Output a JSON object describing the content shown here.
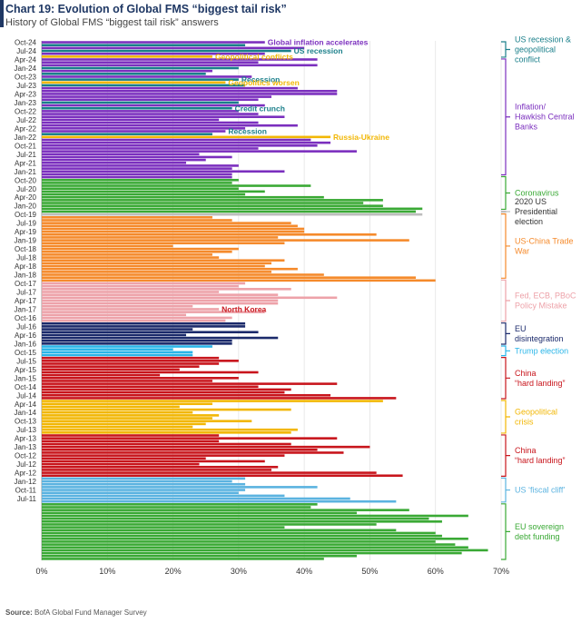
{
  "header": {
    "title": "Chart 19: Evolution of Global FMS “biggest tail risk”",
    "subtitle": "History of Global FMS “biggest tail risk” answers",
    "source_label": "Source:",
    "source_text": " BofA Global Fund Manager Survey"
  },
  "chart_data": {
    "type": "bar",
    "orientation": "horizontal",
    "title": "Chart 19: Evolution of Global FMS “biggest tail risk”",
    "xlabel": "",
    "ylabel": "",
    "xlim": [
      0,
      70
    ],
    "x_ticks": [
      0,
      10,
      20,
      30,
      40,
      50,
      60,
      70
    ],
    "x_tick_labels": [
      "0%",
      "10%",
      "20%",
      "30%",
      "40%",
      "50%",
      "60%",
      "70%"
    ],
    "y_tick_labels": [
      "Oct-24",
      "Jul-24",
      "Apr-24",
      "Jan-24",
      "Oct-23",
      "Jul-23",
      "Apr-23",
      "Jan-23",
      "Oct-22",
      "Jul-22",
      "Apr-22",
      "Jan-22",
      "Oct-21",
      "Jul-21",
      "Apr-21",
      "Jan-21",
      "Oct-20",
      "Jul-20",
      "Apr-20",
      "Jan-20",
      "Oct-19",
      "Jul-19",
      "Apr-19",
      "Jan-19",
      "Oct-18",
      "Jul-18",
      "Apr-18",
      "Jan-18",
      "Oct-17",
      "Jul-17",
      "Apr-17",
      "Jan-17",
      "Oct-16",
      "Jul-16",
      "Apr-16",
      "Jan-16",
      "Oct-15",
      "Jul-15",
      "Apr-15",
      "Jan-15",
      "Oct-14",
      "Jul-14",
      "Apr-14",
      "Jan-14",
      "Oct-13",
      "Jul-13",
      "Apr-13",
      "Jan-13",
      "Oct-12",
      "Jul-12",
      "Apr-12",
      "Jan-12",
      "Oct-11",
      "Jul-11"
    ],
    "colors": {
      "us_recession": "#1a7f8a",
      "geopolitical": "#f2b705",
      "inflation": "#7b2fbe",
      "coronavirus": "#3aa935",
      "us_election_2020": "#bdbdbd",
      "trade_war": "#f58a2b",
      "policy_mistake": "#eda2a9",
      "eu_disintegration": "#1b2a6b",
      "trump_election": "#29b5e8",
      "china_hard_landing": "#c8151c",
      "fiscal_cliff": "#5bb3e0",
      "eu_sovereign": "#3aa935"
    },
    "bars": [
      {
        "v": 34,
        "c": "inflation"
      },
      {
        "v": 31,
        "c": "us_recession"
      },
      {
        "v": 40,
        "c": "inflation"
      },
      {
        "v": 38,
        "c": "us_recession"
      },
      {
        "v": 34,
        "c": "inflation"
      },
      {
        "v": 26,
        "c": "geopolitical"
      },
      {
        "v": 42,
        "c": "inflation"
      },
      {
        "v": 33,
        "c": "inflation"
      },
      {
        "v": 42,
        "c": "inflation"
      },
      {
        "v": 30,
        "c": "us_recession"
      },
      {
        "v": 26,
        "c": "inflation"
      },
      {
        "v": 25,
        "c": "us_recession"
      },
      {
        "v": 32,
        "c": "inflation"
      },
      {
        "v": 30,
        "c": "us_recession"
      },
      {
        "v": 28,
        "c": "geopolitical"
      },
      {
        "v": 31,
        "c": "us_recession"
      },
      {
        "v": 39,
        "c": "inflation"
      },
      {
        "v": 45,
        "c": "inflation"
      },
      {
        "v": 45,
        "c": "inflation"
      },
      {
        "v": 35,
        "c": "inflation"
      },
      {
        "v": 33,
        "c": "inflation"
      },
      {
        "v": 30,
        "c": "us_recession"
      },
      {
        "v": 34,
        "c": "inflation"
      },
      {
        "v": 29,
        "c": "us_recession"
      },
      {
        "v": 30,
        "c": "inflation"
      },
      {
        "v": 33,
        "c": "inflation"
      },
      {
        "v": 37,
        "c": "inflation"
      },
      {
        "v": 27,
        "c": "inflation"
      },
      {
        "v": 33,
        "c": "inflation"
      },
      {
        "v": 39,
        "c": "inflation"
      },
      {
        "v": 31,
        "c": "inflation"
      },
      {
        "v": 28,
        "c": "inflation"
      },
      {
        "v": 26,
        "c": "us_recession"
      },
      {
        "v": 44,
        "c": "geopolitical"
      },
      {
        "v": 41,
        "c": "inflation"
      },
      {
        "v": 44,
        "c": "inflation"
      },
      {
        "v": 42,
        "c": "inflation"
      },
      {
        "v": 33,
        "c": "inflation"
      },
      {
        "v": 48,
        "c": "inflation"
      },
      {
        "v": 24,
        "c": "inflation"
      },
      {
        "v": 29,
        "c": "inflation"
      },
      {
        "v": 25,
        "c": "inflation"
      },
      {
        "v": 22,
        "c": "inflation"
      },
      {
        "v": 30,
        "c": "inflation"
      },
      {
        "v": 29,
        "c": "inflation"
      },
      {
        "v": 37,
        "c": "inflation"
      },
      {
        "v": 29,
        "c": "inflation"
      },
      {
        "v": 29,
        "c": "inflation"
      },
      {
        "v": 30,
        "c": "coronavirus"
      },
      {
        "v": 29,
        "c": "coronavirus"
      },
      {
        "v": 41,
        "c": "coronavirus"
      },
      {
        "v": 30,
        "c": "coronavirus"
      },
      {
        "v": 34,
        "c": "coronavirus"
      },
      {
        "v": 31,
        "c": "coronavirus"
      },
      {
        "v": 43,
        "c": "coronavirus"
      },
      {
        "v": 52,
        "c": "coronavirus"
      },
      {
        "v": 49,
        "c": "coronavirus"
      },
      {
        "v": 52,
        "c": "coronavirus"
      },
      {
        "v": 58,
        "c": "coronavirus"
      },
      {
        "v": 57,
        "c": "coronavirus"
      },
      {
        "v": 58,
        "c": "us_election_2020"
      },
      {
        "v": 26,
        "c": "trade_war"
      },
      {
        "v": 29,
        "c": "trade_war"
      },
      {
        "v": 38,
        "c": "trade_war"
      },
      {
        "v": 39,
        "c": "trade_war"
      },
      {
        "v": 40,
        "c": "trade_war"
      },
      {
        "v": 40,
        "c": "trade_war"
      },
      {
        "v": 51,
        "c": "trade_war"
      },
      {
        "v": 36,
        "c": "trade_war"
      },
      {
        "v": 56,
        "c": "trade_war"
      },
      {
        "v": 37,
        "c": "trade_war"
      },
      {
        "v": 20,
        "c": "trade_war"
      },
      {
        "v": 30,
        "c": "trade_war"
      },
      {
        "v": 29,
        "c": "trade_war"
      },
      {
        "v": 26,
        "c": "trade_war"
      },
      {
        "v": 27,
        "c": "trade_war"
      },
      {
        "v": 37,
        "c": "trade_war"
      },
      {
        "v": 35,
        "c": "trade_war"
      },
      {
        "v": 34,
        "c": "trade_war"
      },
      {
        "v": 39,
        "c": "trade_war"
      },
      {
        "v": 35,
        "c": "trade_war"
      },
      {
        "v": 43,
        "c": "trade_war"
      },
      {
        "v": 57,
        "c": "trade_war"
      },
      {
        "v": 60,
        "c": "trade_war"
      },
      {
        "v": 31,
        "c": "policy_mistake"
      },
      {
        "v": 30,
        "c": "policy_mistake"
      },
      {
        "v": 38,
        "c": "policy_mistake"
      },
      {
        "v": 27,
        "c": "policy_mistake"
      },
      {
        "v": 36,
        "c": "policy_mistake"
      },
      {
        "v": 45,
        "c": "policy_mistake"
      },
      {
        "v": 36,
        "c": "policy_mistake"
      },
      {
        "v": 36,
        "c": "policy_mistake"
      },
      {
        "v": 23,
        "c": "policy_mistake"
      },
      {
        "v": 27,
        "c": "policy_mistake"
      },
      {
        "v": 34,
        "c": "policy_mistake"
      },
      {
        "v": 22,
        "c": "policy_mistake"
      },
      {
        "v": 29,
        "c": "policy_mistake"
      },
      {
        "v": 28,
        "c": "policy_mistake"
      },
      {
        "v": 31,
        "c": "eu_disintegration"
      },
      {
        "v": 31,
        "c": "eu_disintegration"
      },
      {
        "v": 23,
        "c": "eu_disintegration"
      },
      {
        "v": 33,
        "c": "eu_disintegration"
      },
      {
        "v": 22,
        "c": "eu_disintegration"
      },
      {
        "v": 36,
        "c": "eu_disintegration"
      },
      {
        "v": 29,
        "c": "eu_disintegration"
      },
      {
        "v": 29,
        "c": "eu_disintegration"
      },
      {
        "v": 26,
        "c": "trump_election"
      },
      {
        "v": 20,
        "c": "trump_election"
      },
      {
        "v": 23,
        "c": "trump_election"
      },
      {
        "v": 23,
        "c": "trump_election"
      },
      {
        "v": 27,
        "c": "china_hard_landing"
      },
      {
        "v": 30,
        "c": "china_hard_landing"
      },
      {
        "v": 27,
        "c": "china_hard_landing"
      },
      {
        "v": 24,
        "c": "china_hard_landing"
      },
      {
        "v": 21,
        "c": "china_hard_landing"
      },
      {
        "v": 33,
        "c": "china_hard_landing"
      },
      {
        "v": 18,
        "c": "china_hard_landing"
      },
      {
        "v": 30,
        "c": "china_hard_landing"
      },
      {
        "v": 26,
        "c": "china_hard_landing"
      },
      {
        "v": 45,
        "c": "china_hard_landing"
      },
      {
        "v": 33,
        "c": "china_hard_landing"
      },
      {
        "v": 38,
        "c": "china_hard_landing"
      },
      {
        "v": 37,
        "c": "china_hard_landing"
      },
      {
        "v": 44,
        "c": "china_hard_landing"
      },
      {
        "v": 54,
        "c": "china_hard_landing"
      },
      {
        "v": 52,
        "c": "geopolitical"
      },
      {
        "v": 26,
        "c": "geopolitical"
      },
      {
        "v": 21,
        "c": "geopolitical"
      },
      {
        "v": 38,
        "c": "geopolitical"
      },
      {
        "v": 23,
        "c": "geopolitical"
      },
      {
        "v": 27,
        "c": "geopolitical"
      },
      {
        "v": 26,
        "c": "geopolitical"
      },
      {
        "v": 32,
        "c": "geopolitical"
      },
      {
        "v": 25,
        "c": "geopolitical"
      },
      {
        "v": 23,
        "c": "geopolitical"
      },
      {
        "v": 39,
        "c": "geopolitical"
      },
      {
        "v": 38,
        "c": "geopolitical"
      },
      {
        "v": 27,
        "c": "china_hard_landing"
      },
      {
        "v": 45,
        "c": "china_hard_landing"
      },
      {
        "v": 27,
        "c": "china_hard_landing"
      },
      {
        "v": 38,
        "c": "china_hard_landing"
      },
      {
        "v": 50,
        "c": "china_hard_landing"
      },
      {
        "v": 42,
        "c": "china_hard_landing"
      },
      {
        "v": 46,
        "c": "china_hard_landing"
      },
      {
        "v": 37,
        "c": "china_hard_landing"
      },
      {
        "v": 25,
        "c": "china_hard_landing"
      },
      {
        "v": 34,
        "c": "china_hard_landing"
      },
      {
        "v": 24,
        "c": "china_hard_landing"
      },
      {
        "v": 36,
        "c": "china_hard_landing"
      },
      {
        "v": 35,
        "c": "china_hard_landing"
      },
      {
        "v": 51,
        "c": "china_hard_landing"
      },
      {
        "v": 55,
        "c": "china_hard_landing"
      },
      {
        "v": 31,
        "c": "fiscal_cliff"
      },
      {
        "v": 29,
        "c": "fiscal_cliff"
      },
      {
        "v": 31,
        "c": "fiscal_cliff"
      },
      {
        "v": 42,
        "c": "fiscal_cliff"
      },
      {
        "v": 31,
        "c": "fiscal_cliff"
      },
      {
        "v": 30,
        "c": "fiscal_cliff"
      },
      {
        "v": 37,
        "c": "fiscal_cliff"
      },
      {
        "v": 47,
        "c": "fiscal_cliff"
      },
      {
        "v": 54,
        "c": "fiscal_cliff"
      },
      {
        "v": 42,
        "c": "eu_sovereign"
      },
      {
        "v": 41,
        "c": "eu_sovereign"
      },
      {
        "v": 56,
        "c": "eu_sovereign"
      },
      {
        "v": 48,
        "c": "eu_sovereign"
      },
      {
        "v": 65,
        "c": "eu_sovereign"
      },
      {
        "v": 59,
        "c": "eu_sovereign"
      },
      {
        "v": 61,
        "c": "eu_sovereign"
      },
      {
        "v": 51,
        "c": "eu_sovereign"
      },
      {
        "v": 37,
        "c": "eu_sovereign"
      },
      {
        "v": 54,
        "c": "eu_sovereign"
      },
      {
        "v": 60,
        "c": "eu_sovereign"
      },
      {
        "v": 61,
        "c": "eu_sovereign"
      },
      {
        "v": 65,
        "c": "eu_sovereign"
      },
      {
        "v": 60,
        "c": "eu_sovereign"
      },
      {
        "v": 63,
        "c": "eu_sovereign"
      },
      {
        "v": 65,
        "c": "eu_sovereign"
      },
      {
        "v": 68,
        "c": "eu_sovereign"
      },
      {
        "v": 64,
        "c": "eu_sovereign"
      },
      {
        "v": 48,
        "c": "eu_sovereign"
      },
      {
        "v": 43,
        "c": "eu_sovereign"
      }
    ],
    "bar_annotations": [
      {
        "text": "Global inflation accelerates",
        "bar": 0,
        "c": "inflation"
      },
      {
        "text": "US recession",
        "bar": 3,
        "c": "us_recession"
      },
      {
        "text": "Geopolitical conflicts",
        "bar": 5,
        "c": "geopolitical"
      },
      {
        "text": "Recession",
        "bar": 13,
        "c": "us_recession"
      },
      {
        "text": "Geopolitics worsen",
        "bar": 14,
        "c": "geopolitical"
      },
      {
        "text": "Credit crunch",
        "bar": 23,
        "c": "us_recession"
      },
      {
        "text": "Recession",
        "bar": 31,
        "c": "us_recession"
      },
      {
        "text": "Russia-Ukraine",
        "bar": 33,
        "c": "geopolitical"
      },
      {
        "text": "North Korea",
        "bar": 93,
        "c": "china_hard_landing"
      }
    ],
    "groups": [
      {
        "label": [
          "US recession &",
          "geopolitical",
          "conflict"
        ],
        "from": 0,
        "to": 5,
        "c": "us_recession",
        "lc": "us_recession"
      },
      {
        "label": [
          "Inflation/",
          "Hawkish Central",
          "Banks"
        ],
        "from": 6,
        "to": 46,
        "c": "inflation",
        "lc": "inflation"
      },
      {
        "label": [
          "Coronavirus"
        ],
        "from": 47,
        "to": 58,
        "c": "coronavirus",
        "lc": "coronavirus"
      },
      {
        "label": [
          "2020 US",
          "Presidential",
          "election"
        ],
        "from": 59,
        "to": 59,
        "c": "us_election_2020",
        "lc": "dark"
      },
      {
        "label": [
          "US-China Trade",
          "War"
        ],
        "from": 60,
        "to": 82,
        "c": "trade_war",
        "lc": "trade_war"
      },
      {
        "label": [
          "Fed, ECB, PBoC",
          "Policy Mistake"
        ],
        "from": 83,
        "to": 97,
        "c": "policy_mistake",
        "lc": "policy_mistake"
      },
      {
        "label": [
          "EU",
          "disintegration"
        ],
        "from": 98,
        "to": 105,
        "c": "eu_disintegration",
        "lc": "eu_disintegration"
      },
      {
        "label": [
          "Trump election"
        ],
        "from": 106,
        "to": 109,
        "c": "trump_election",
        "lc": "trump_election"
      },
      {
        "label": [
          "China",
          "“hard landing”"
        ],
        "from": 110,
        "to": 124,
        "c": "china_hard_landing",
        "lc": "china_hard_landing"
      },
      {
        "label": [
          "Geopolitical",
          "crisis"
        ],
        "from": 125,
        "to": 136,
        "c": "geopolitical",
        "lc": "geopolitical"
      },
      {
        "label": [
          "China",
          "“hard landing”"
        ],
        "from": 137,
        "to": 151,
        "c": "china_hard_landing",
        "lc": "china_hard_landing"
      },
      {
        "label": [
          "US ‘fiscal cliff’"
        ],
        "from": 152,
        "to": 160,
        "c": "fiscal_cliff",
        "lc": "fiscal_cliff"
      },
      {
        "label": [
          "EU sovereign",
          "debt funding"
        ],
        "from": 161,
        "to": 180,
        "c": "eu_sovereign",
        "lc": "eu_sovereign"
      }
    ]
  }
}
